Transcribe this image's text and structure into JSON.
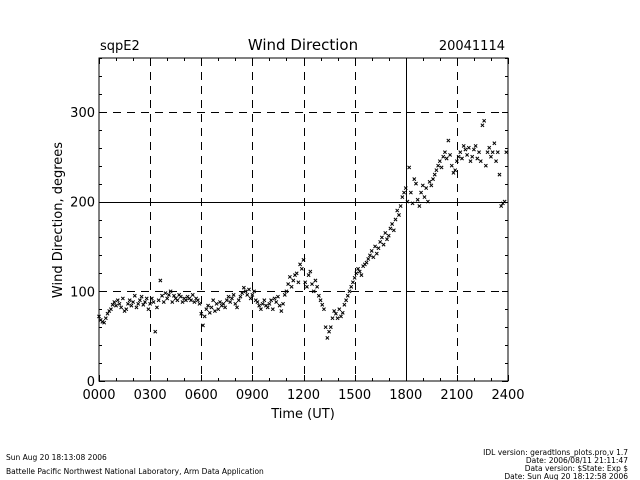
{
  "header": {
    "site": "sqpE2",
    "date": "20041114"
  },
  "footer": {
    "left_line1": "Sun Aug 20 18:13:08 2006",
    "left_line2": "Battelle Pacific Northwest National Laboratory, Arm Data Application",
    "right_line1": "IDL version: geradtlons_plots.pro,v 1.7",
    "right_line2": "Date: 2006/08/11 21:11:47",
    "right_line3": "Data version: $State: Exp $",
    "right_line4": "Date: Sun Aug 20 18:12:58 2006"
  },
  "chart_data": {
    "type": "scatter",
    "title": "Wind Direction",
    "xlabel": "Time (UT)",
    "ylabel": "Wind Direction, degrees",
    "xlim": [
      0,
      24
    ],
    "ylim": [
      0,
      360
    ],
    "xticks": [
      0,
      3,
      6,
      9,
      12,
      15,
      18,
      21,
      24
    ],
    "xtick_labels": [
      "0000",
      "0300",
      "0600",
      "0900",
      "1200",
      "1500",
      "1800",
      "2100",
      "2400"
    ],
    "yticks": [
      0,
      100,
      200,
      300
    ],
    "ytick_labels": [
      "0",
      "100",
      "200",
      "300"
    ],
    "vertical_dashed_grid": [
      3,
      6,
      9,
      12,
      15,
      21
    ],
    "vertical_solid_grid": [
      18
    ],
    "horizontal_dashed_grid": [
      100,
      300
    ],
    "horizontal_solid_grid": [
      200
    ],
    "marker": "x",
    "series": [
      {
        "name": "Wind Direction",
        "x": [
          0.0,
          0.1,
          0.2,
          0.3,
          0.4,
          0.5,
          0.6,
          0.7,
          0.8,
          0.9,
          1.0,
          1.1,
          1.2,
          1.3,
          1.4,
          1.5,
          1.6,
          1.7,
          1.8,
          1.9,
          2.0,
          2.1,
          2.2,
          2.3,
          2.4,
          2.5,
          2.6,
          2.7,
          2.8,
          2.9,
          3.0,
          3.1,
          3.2,
          3.3,
          3.4,
          3.5,
          3.6,
          3.7,
          3.8,
          3.9,
          4.0,
          4.1,
          4.2,
          4.3,
          4.4,
          4.5,
          4.6,
          4.7,
          4.8,
          4.9,
          5.0,
          5.1,
          5.2,
          5.3,
          5.4,
          5.5,
          5.6,
          5.7,
          5.8,
          5.9,
          6.0,
          6.1,
          6.2,
          6.3,
          6.4,
          6.5,
          6.6,
          6.7,
          6.8,
          6.9,
          7.0,
          7.1,
          7.2,
          7.3,
          7.4,
          7.5,
          7.6,
          7.7,
          7.8,
          7.9,
          8.0,
          8.1,
          8.2,
          8.3,
          8.4,
          8.5,
          8.6,
          8.7,
          8.8,
          8.9,
          9.0,
          9.1,
          9.2,
          9.3,
          9.4,
          9.5,
          9.6,
          9.7,
          9.8,
          9.9,
          10.0,
          10.1,
          10.2,
          10.3,
          10.4,
          10.5,
          10.6,
          10.7,
          10.8,
          10.9,
          11.0,
          11.1,
          11.2,
          11.3,
          11.4,
          11.5,
          11.6,
          11.7,
          11.8,
          11.9,
          12.0,
          12.1,
          12.2,
          12.3,
          12.4,
          12.5,
          12.6,
          12.7,
          12.8,
          12.9,
          13.0,
          13.1,
          13.2,
          13.3,
          13.4,
          13.5,
          13.6,
          13.7,
          13.8,
          13.9,
          14.0,
          14.1,
          14.2,
          14.3,
          14.4,
          14.5,
          14.6,
          14.7,
          14.8,
          14.9,
          15.0,
          15.1,
          15.2,
          15.3,
          15.4,
          15.5,
          15.6,
          15.7,
          15.8,
          15.9,
          16.0,
          16.1,
          16.2,
          16.3,
          16.4,
          16.5,
          16.6,
          16.7,
          16.8,
          16.9,
          17.0,
          17.1,
          17.2,
          17.3,
          17.4,
          17.5,
          17.6,
          17.7,
          17.8,
          17.9,
          18.0,
          18.1,
          18.2,
          18.3,
          18.4,
          18.5,
          18.6,
          18.7,
          18.8,
          18.9,
          19.0,
          19.1,
          19.2,
          19.3,
          19.4,
          19.5,
          19.6,
          19.7,
          19.8,
          19.9,
          20.0,
          20.1,
          20.2,
          20.3,
          20.4,
          20.5,
          20.6,
          20.7,
          20.8,
          20.9,
          21.0,
          21.1,
          21.2,
          21.3,
          21.4,
          21.5,
          21.6,
          21.7,
          21.8,
          21.9,
          22.0,
          22.1,
          22.2,
          22.3,
          22.4,
          22.5,
          22.6,
          22.7,
          22.8,
          22.9,
          23.0,
          23.1,
          23.2,
          23.3,
          23.4,
          23.5,
          23.6,
          23.7,
          23.8,
          23.9
        ],
        "y": [
          72,
          68,
          66,
          65,
          70,
          75,
          78,
          80,
          85,
          88,
          84,
          90,
          86,
          82,
          92,
          78,
          80,
          86,
          90,
          84,
          88,
          95,
          82,
          86,
          90,
          94,
          85,
          88,
          92,
          80,
          86,
          92,
          88,
          55,
          82,
          90,
          112,
          95,
          88,
          98,
          92,
          96,
          100,
          88,
          95,
          92,
          90,
          96,
          94,
          88,
          92,
          90,
          94,
          92,
          90,
          96,
          88,
          92,
          90,
          86,
          75,
          62,
          72,
          80,
          84,
          76,
          82,
          90,
          78,
          86,
          80,
          88,
          84,
          86,
          82,
          90,
          94,
          88,
          92,
          96,
          86,
          82,
          90,
          94,
          98,
          104,
          100,
          96,
          102,
          92,
          96,
          100,
          90,
          88,
          84,
          80,
          86,
          90,
          84,
          82,
          86,
          90,
          80,
          92,
          88,
          94,
          84,
          78,
          86,
          96,
          100,
          108,
          116,
          105,
          112,
          118,
          120,
          110,
          130,
          125,
          135,
          110,
          105,
          118,
          122,
          108,
          100,
          112,
          105,
          95,
          90,
          85,
          80,
          60,
          48,
          55,
          60,
          70,
          78,
          75,
          70,
          80,
          72,
          76,
          85,
          90,
          95,
          100,
          105,
          110,
          115,
          120,
          125,
          122,
          118,
          128,
          130,
          132,
          136,
          140,
          145,
          138,
          150,
          142,
          148,
          155,
          160,
          152,
          165,
          158,
          162,
          170,
          175,
          168,
          180,
          190,
          185,
          195,
          205,
          210,
          215,
          200,
          238,
          210,
          198,
          225,
          220,
          202,
          195,
          210,
          218,
          205,
          215,
          200,
          222,
          218,
          225,
          230,
          235,
          240,
          245,
          238,
          250,
          255,
          248,
          268,
          252,
          240,
          232,
          235,
          245,
          250,
          255,
          248,
          262,
          258,
          252,
          260,
          245,
          250,
          258,
          262,
          248,
          255,
          245,
          285,
          290,
          240,
          255,
          260,
          250,
          255,
          265,
          245,
          255,
          230,
          195,
          198,
          200,
          255
        ]
      }
    ]
  }
}
